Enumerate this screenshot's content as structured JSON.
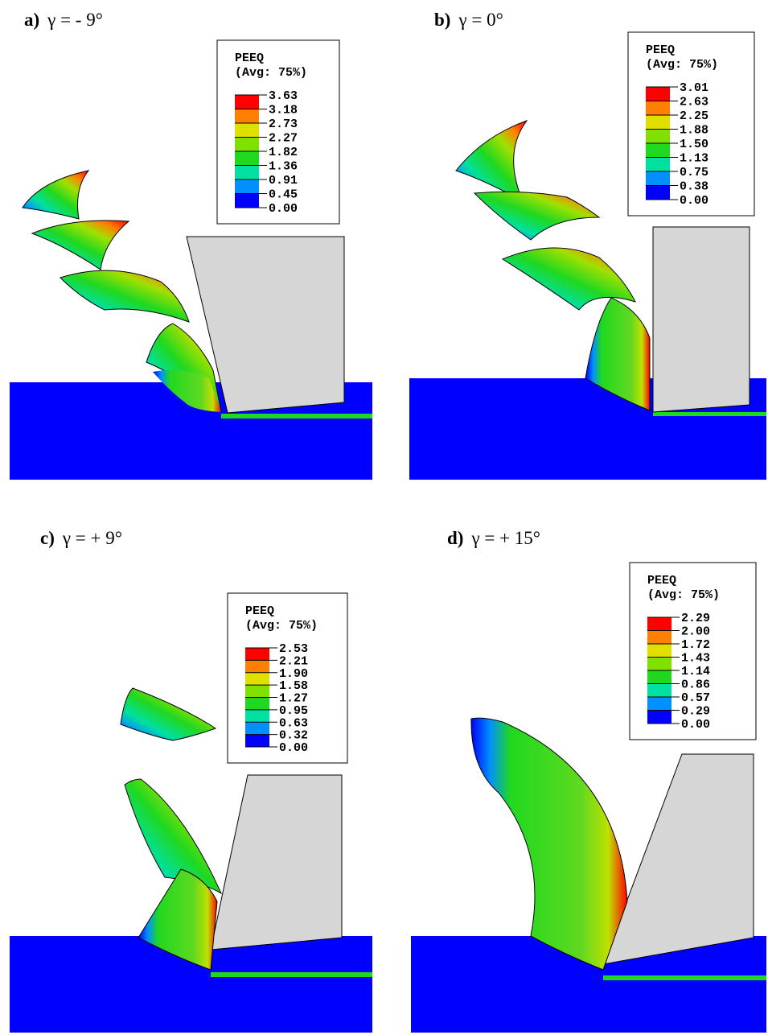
{
  "panels": [
    {
      "label": "a)",
      "title": "γ = - 9°",
      "legend": {
        "title": "PEEQ",
        "subtitle": "(Avg: 75%)",
        "values": [
          "3.63",
          "3.18",
          "2.73",
          "2.27",
          "1.82",
          "1.36",
          "0.91",
          "0.45",
          "0.00"
        ]
      }
    },
    {
      "label": "b)",
      "title": "γ = 0°",
      "legend": {
        "title": "PEEQ",
        "subtitle": "(Avg: 75%)",
        "values": [
          "3.01",
          "2.63",
          "2.25",
          "1.88",
          "1.50",
          "1.13",
          "0.75",
          "0.38",
          "0.00"
        ]
      }
    },
    {
      "label": "c)",
      "title": "γ = + 9°",
      "legend": {
        "title": "PEEQ",
        "subtitle": "(Avg: 75%)",
        "values": [
          "2.53",
          "2.21",
          "1.90",
          "1.58",
          "1.27",
          "0.95",
          "0.63",
          "0.32",
          "0.00"
        ]
      }
    },
    {
      "label": "d)",
      "title": "γ = + 15°",
      "legend": {
        "title": "PEEQ",
        "subtitle": "(Avg: 75%)",
        "values": [
          "2.29",
          "2.00",
          "1.72",
          "1.43",
          "1.14",
          "0.86",
          "0.57",
          "0.29",
          "0.00"
        ]
      }
    }
  ]
}
